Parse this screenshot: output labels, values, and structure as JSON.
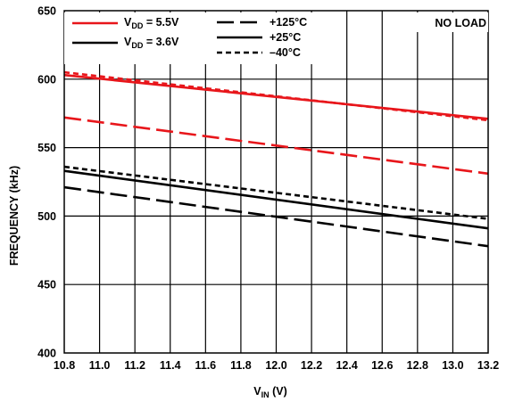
{
  "chart_data": {
    "type": "line",
    "title": "",
    "annotation": "NO LOAD",
    "xlabel": "V",
    "xlabel_sub": "IN",
    "xlabel_unit": " (V)",
    "ylabel": "FREQUENCY (kHz)",
    "xlim": [
      10.8,
      13.2
    ],
    "ylim": [
      400,
      650
    ],
    "xticks": [
      "10.8",
      "11.0",
      "11.2",
      "11.4",
      "11.6",
      "11.8",
      "12.0",
      "12.2",
      "12.4",
      "12.6",
      "12.8",
      "13.0",
      "13.2"
    ],
    "yticks": [
      "400",
      "450",
      "500",
      "550",
      "600",
      "650"
    ],
    "grid": true,
    "legend_position": "top-left",
    "legend_supply": [
      {
        "main": "V",
        "sub": "DD",
        "rest": " = 5.5V",
        "color": "#e8161b"
      },
      {
        "main": "V",
        "sub": "DD",
        "rest": " = 3.6V",
        "color": "#000000"
      }
    ],
    "legend_temp": [
      {
        "label": "+125°C",
        "style": "long-dash"
      },
      {
        "label": "+25°C",
        "style": "solid"
      },
      {
        "label": "–40°C",
        "style": "short-dash"
      }
    ],
    "series": [
      {
        "supply": "5.5V",
        "temp": "+25°C",
        "color": "#e8161b",
        "style": "solid",
        "x": [
          10.8,
          13.2
        ],
        "y": [
          603,
          571
        ]
      },
      {
        "supply": "5.5V",
        "temp": "–40°C",
        "color": "#e8161b",
        "style": "short-dash",
        "x": [
          10.8,
          13.2
        ],
        "y": [
          605,
          570
        ]
      },
      {
        "supply": "5.5V",
        "temp": "+125°C",
        "color": "#e8161b",
        "style": "long-dash",
        "x": [
          10.8,
          13.2
        ],
        "y": [
          572,
          531
        ]
      },
      {
        "supply": "3.6V",
        "temp": "–40°C",
        "color": "#000000",
        "style": "short-dash",
        "x": [
          10.8,
          13.2
        ],
        "y": [
          536,
          498
        ]
      },
      {
        "supply": "3.6V",
        "temp": "+25°C",
        "color": "#000000",
        "style": "solid",
        "x": [
          10.8,
          13.2
        ],
        "y": [
          533,
          491
        ]
      },
      {
        "supply": "3.6V",
        "temp": "+125°C",
        "color": "#000000",
        "style": "long-dash",
        "x": [
          10.8,
          13.2
        ],
        "y": [
          521,
          478
        ]
      }
    ]
  }
}
